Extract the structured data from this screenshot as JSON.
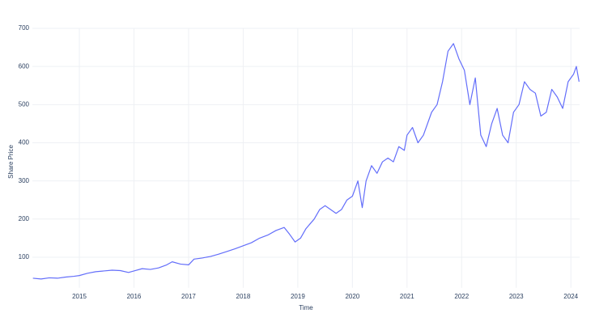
{
  "chart_data": {
    "type": "line",
    "x_label": "Time",
    "y_label": "Share Price",
    "x": [
      2014.15,
      2014.3,
      2014.45,
      2014.6,
      2014.75,
      2014.9,
      2015.0,
      2015.15,
      2015.3,
      2015.45,
      2015.6,
      2015.75,
      2015.9,
      2016.0,
      2016.15,
      2016.3,
      2016.45,
      2016.6,
      2016.7,
      2016.85,
      2017.0,
      2017.1,
      2017.25,
      2017.4,
      2017.55,
      2017.7,
      2017.85,
      2018.0,
      2018.15,
      2018.3,
      2018.45,
      2018.6,
      2018.75,
      2018.85,
      2018.95,
      2019.05,
      2019.15,
      2019.3,
      2019.4,
      2019.5,
      2019.6,
      2019.7,
      2019.8,
      2019.9,
      2020.0,
      2020.1,
      2020.18,
      2020.25,
      2020.35,
      2020.45,
      2020.55,
      2020.65,
      2020.75,
      2020.85,
      2020.95,
      2021.0,
      2021.1,
      2021.2,
      2021.3,
      2021.45,
      2021.55,
      2021.65,
      2021.75,
      2021.85,
      2021.95,
      2022.05,
      2022.15,
      2022.25,
      2022.35,
      2022.45,
      2022.55,
      2022.65,
      2022.75,
      2022.85,
      2022.95,
      2023.05,
      2023.15,
      2023.25,
      2023.35,
      2023.45,
      2023.55,
      2023.65,
      2023.75,
      2023.85,
      2023.95,
      2024.05,
      2024.1,
      2024.15
    ],
    "series": [
      {
        "name": "Share Price",
        "color": "#636efa",
        "values": [
          45,
          43,
          46,
          45,
          48,
          50,
          52,
          58,
          62,
          64,
          66,
          65,
          60,
          64,
          70,
          68,
          72,
          80,
          88,
          82,
          80,
          95,
          98,
          102,
          108,
          115,
          122,
          130,
          138,
          150,
          158,
          170,
          178,
          160,
          140,
          150,
          175,
          200,
          225,
          235,
          225,
          215,
          225,
          250,
          260,
          300,
          230,
          300,
          340,
          320,
          350,
          360,
          350,
          390,
          380,
          420,
          440,
          400,
          420,
          480,
          500,
          560,
          640,
          660,
          620,
          590,
          500,
          570,
          420,
          390,
          450,
          490,
          420,
          400,
          480,
          500,
          560,
          540,
          530,
          470,
          480,
          540,
          520,
          490,
          560,
          580,
          600,
          560
        ]
      }
    ],
    "xlim": [
      2014.14,
      2024.16
    ],
    "xticks": [
      2015,
      2016,
      2017,
      2018,
      2019,
      2020,
      2021,
      2022,
      2023,
      2024
    ],
    "ylim": [
      20,
      700
    ],
    "yticks": [
      100,
      200,
      300,
      400,
      500,
      600,
      700
    ],
    "grid": true
  }
}
